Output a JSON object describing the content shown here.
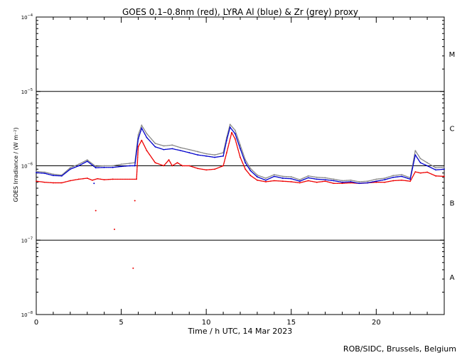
{
  "chart_data": {
    "type": "scatter",
    "title": "GOES 0.1–0.8nm (red), LYRA Al (blue) & Zr (grey) proxy",
    "xlabel": "Time / h UTC, 14 Mar 2023",
    "ylabel": "GOES Irradiance / (W m⁻²)",
    "credit": "ROB/SIDC, Brussels, Belgium",
    "xlim": [
      0,
      24
    ],
    "ylim": [
      1e-08,
      0.0001
    ],
    "yscale": "log",
    "x_ticks": [
      0,
      5,
      10,
      15,
      20
    ],
    "x_tick_labels": [
      "0",
      "5",
      "10",
      "15",
      "20"
    ],
    "y_ticks": [
      1e-08,
      1e-07,
      1e-06,
      1e-05,
      0.0001
    ],
    "y_tick_labels": [
      {
        "base": "10",
        "exp": "−8"
      },
      {
        "base": "10",
        "exp": "−7"
      },
      {
        "base": "10",
        "exp": "−6"
      },
      {
        "base": "10",
        "exp": "−5"
      },
      {
        "base": "10",
        "exp": "−4"
      }
    ],
    "flare_class_lines": [
      1e-07,
      1e-06,
      1e-05
    ],
    "flare_classes": [
      {
        "label": "A",
        "y": 3.2e-08
      },
      {
        "label": "B",
        "y": 3.2e-07
      },
      {
        "label": "C",
        "y": 3.2e-06
      },
      {
        "label": "M",
        "y": 3.2e-05
      }
    ],
    "colors": {
      "goes": "#ee0000",
      "al": "#0000cc",
      "zr": "#888888",
      "axes": "#000000"
    },
    "series": [
      {
        "key": "goes",
        "color": "#ee0000",
        "points": [
          [
            0,
            6.2e-07
          ],
          [
            0.5,
            6e-07
          ],
          [
            1.0,
            5.9e-07
          ],
          [
            1.5,
            5.9e-07
          ],
          [
            2.0,
            6.3e-07
          ],
          [
            2.5,
            6.6e-07
          ],
          [
            3.0,
            6.8e-07
          ],
          [
            3.3,
            6.4e-07
          ],
          [
            3.6,
            6.7e-07
          ],
          [
            4.0,
            6.5e-07
          ],
          [
            4.5,
            6.6e-07
          ],
          [
            5.9,
            6.6e-07
          ],
          [
            6.0,
            1.8e-06
          ],
          [
            6.2,
            2.2e-06
          ],
          [
            6.5,
            1.6e-06
          ],
          [
            7.0,
            1.1e-06
          ],
          [
            7.5,
            1e-06
          ],
          [
            7.8,
            1.2e-06
          ],
          [
            8.0,
            1e-06
          ],
          [
            8.3,
            1.1e-06
          ],
          [
            8.6,
            1e-06
          ],
          [
            9.0,
            1e-06
          ],
          [
            9.5,
            9.2e-07
          ],
          [
            10.0,
            8.8e-07
          ],
          [
            10.5,
            9e-07
          ],
          [
            11.0,
            1e-06
          ],
          [
            11.2,
            1.5e-06
          ],
          [
            11.5,
            2.8e-06
          ],
          [
            11.7,
            2.3e-06
          ],
          [
            12.0,
            1.3e-06
          ],
          [
            12.3,
            9e-07
          ],
          [
            12.6,
            7.4e-07
          ],
          [
            13.0,
            6.4e-07
          ],
          [
            13.5,
            6.1e-07
          ],
          [
            14.0,
            6.3e-07
          ],
          [
            14.5,
            6.2e-07
          ],
          [
            15.0,
            6.1e-07
          ],
          [
            15.5,
            5.9e-07
          ],
          [
            16.0,
            6.3e-07
          ],
          [
            16.5,
            6e-07
          ],
          [
            17.0,
            6.2e-07
          ],
          [
            17.5,
            5.8e-07
          ],
          [
            18.0,
            5.8e-07
          ],
          [
            18.5,
            5.9e-07
          ],
          [
            19.0,
            5.8e-07
          ],
          [
            19.5,
            5.9e-07
          ],
          [
            20.0,
            6e-07
          ],
          [
            20.5,
            6e-07
          ],
          [
            21.0,
            6.3e-07
          ],
          [
            21.5,
            6.4e-07
          ],
          [
            22.0,
            6.2e-07
          ],
          [
            22.3,
            8.3e-07
          ],
          [
            22.6,
            8e-07
          ],
          [
            23.0,
            8.2e-07
          ],
          [
            23.5,
            7.3e-07
          ],
          [
            24.0,
            7.2e-07
          ]
        ]
      },
      {
        "key": "zr",
        "color": "#888888",
        "points": [
          [
            0,
            8.4e-07
          ],
          [
            0.5,
            8.2e-07
          ],
          [
            1.0,
            7.7e-07
          ],
          [
            1.5,
            7.5e-07
          ],
          [
            2.0,
            9.4e-07
          ],
          [
            2.5,
            1.05e-06
          ],
          [
            3.0,
            1.2e-06
          ],
          [
            3.5,
            9.8e-07
          ],
          [
            4.0,
            1e-06
          ],
          [
            4.5,
            1e-06
          ],
          [
            5.0,
            1.05e-06
          ],
          [
            5.5,
            1.08e-06
          ],
          [
            5.8,
            1.1e-06
          ],
          [
            6.0,
            2.6e-06
          ],
          [
            6.2,
            3.5e-06
          ],
          [
            6.5,
            2.7e-06
          ],
          [
            7.0,
            2e-06
          ],
          [
            7.5,
            1.85e-06
          ],
          [
            8.0,
            1.9e-06
          ],
          [
            8.5,
            1.75e-06
          ],
          [
            9.0,
            1.65e-06
          ],
          [
            9.5,
            1.55e-06
          ],
          [
            10.0,
            1.45e-06
          ],
          [
            10.5,
            1.4e-06
          ],
          [
            11.0,
            1.5e-06
          ],
          [
            11.2,
            2.4e-06
          ],
          [
            11.4,
            3.6e-06
          ],
          [
            11.7,
            3e-06
          ],
          [
            12.0,
            1.9e-06
          ],
          [
            12.3,
            1.2e-06
          ],
          [
            12.6,
            9.2e-07
          ],
          [
            13.0,
            7.5e-07
          ],
          [
            13.5,
            6.8e-07
          ],
          [
            14.0,
            7.6e-07
          ],
          [
            14.5,
            7.2e-07
          ],
          [
            15.0,
            7.1e-07
          ],
          [
            15.5,
            6.5e-07
          ],
          [
            16.0,
            7.3e-07
          ],
          [
            16.5,
            7e-07
          ],
          [
            17.0,
            6.9e-07
          ],
          [
            17.5,
            6.6e-07
          ],
          [
            18.0,
            6.3e-07
          ],
          [
            18.5,
            6.4e-07
          ],
          [
            19.0,
            6.1e-07
          ],
          [
            19.5,
            6.2e-07
          ],
          [
            20.0,
            6.6e-07
          ],
          [
            20.5,
            6.8e-07
          ],
          [
            21.0,
            7.4e-07
          ],
          [
            21.5,
            7.6e-07
          ],
          [
            22.0,
            6.9e-07
          ],
          [
            22.3,
            1.6e-06
          ],
          [
            22.6,
            1.25e-06
          ],
          [
            23.0,
            1.1e-06
          ],
          [
            23.5,
            9.4e-07
          ],
          [
            24.0,
            9.6e-07
          ]
        ]
      },
      {
        "key": "al",
        "color": "#0000cc",
        "points": [
          [
            0,
            8.1e-07
          ],
          [
            0.5,
            7.9e-07
          ],
          [
            1.0,
            7.4e-07
          ],
          [
            1.5,
            7.3e-07
          ],
          [
            2.0,
            9e-07
          ],
          [
            2.5,
            1e-06
          ],
          [
            3.0,
            1.15e-06
          ],
          [
            3.5,
            9.4e-07
          ],
          [
            4.0,
            9.5e-07
          ],
          [
            4.5,
            9.5e-07
          ],
          [
            5.0,
            9.8e-07
          ],
          [
            5.5,
            1e-06
          ],
          [
            5.8,
            1e-06
          ],
          [
            6.0,
            2.3e-06
          ],
          [
            6.2,
            3.2e-06
          ],
          [
            6.5,
            2.4e-06
          ],
          [
            7.0,
            1.8e-06
          ],
          [
            7.5,
            1.65e-06
          ],
          [
            8.0,
            1.7e-06
          ],
          [
            8.5,
            1.6e-06
          ],
          [
            9.0,
            1.5e-06
          ],
          [
            9.5,
            1.4e-06
          ],
          [
            10.0,
            1.35e-06
          ],
          [
            10.5,
            1.3e-06
          ],
          [
            11.0,
            1.35e-06
          ],
          [
            11.2,
            2.2e-06
          ],
          [
            11.4,
            3.3e-06
          ],
          [
            11.7,
            2.7e-06
          ],
          [
            12.0,
            1.7e-06
          ],
          [
            12.3,
            1.1e-06
          ],
          [
            12.6,
            8.6e-07
          ],
          [
            13.0,
            7.1e-07
          ],
          [
            13.5,
            6.4e-07
          ],
          [
            14.0,
            7.2e-07
          ],
          [
            14.5,
            6.8e-07
          ],
          [
            15.0,
            6.7e-07
          ],
          [
            15.5,
            6.2e-07
          ],
          [
            16.0,
            6.9e-07
          ],
          [
            16.5,
            6.6e-07
          ],
          [
            17.0,
            6.5e-07
          ],
          [
            17.5,
            6.3e-07
          ],
          [
            18.0,
            6e-07
          ],
          [
            18.5,
            6.1e-07
          ],
          [
            19.0,
            5.8e-07
          ],
          [
            19.5,
            5.9e-07
          ],
          [
            20.0,
            6.2e-07
          ],
          [
            20.5,
            6.5e-07
          ],
          [
            21.0,
            7e-07
          ],
          [
            21.5,
            7.2e-07
          ],
          [
            22.0,
            6.6e-07
          ],
          [
            22.3,
            1.4e-06
          ],
          [
            22.6,
            1.1e-06
          ],
          [
            23.0,
            1e-06
          ],
          [
            23.5,
            8.8e-07
          ],
          [
            24.0,
            9e-07
          ]
        ]
      }
    ],
    "outlier_points": [
      {
        "series": "goes",
        "x": 3.5,
        "y": 2.5e-07
      },
      {
        "series": "goes",
        "x": 4.6,
        "y": 1.4e-07
      },
      {
        "series": "goes",
        "x": 5.7,
        "y": 4.2e-08
      },
      {
        "series": "goes",
        "x": 5.8,
        "y": 3.4e-07
      },
      {
        "series": "al",
        "x": 3.4,
        "y": 5.8e-07
      }
    ]
  }
}
